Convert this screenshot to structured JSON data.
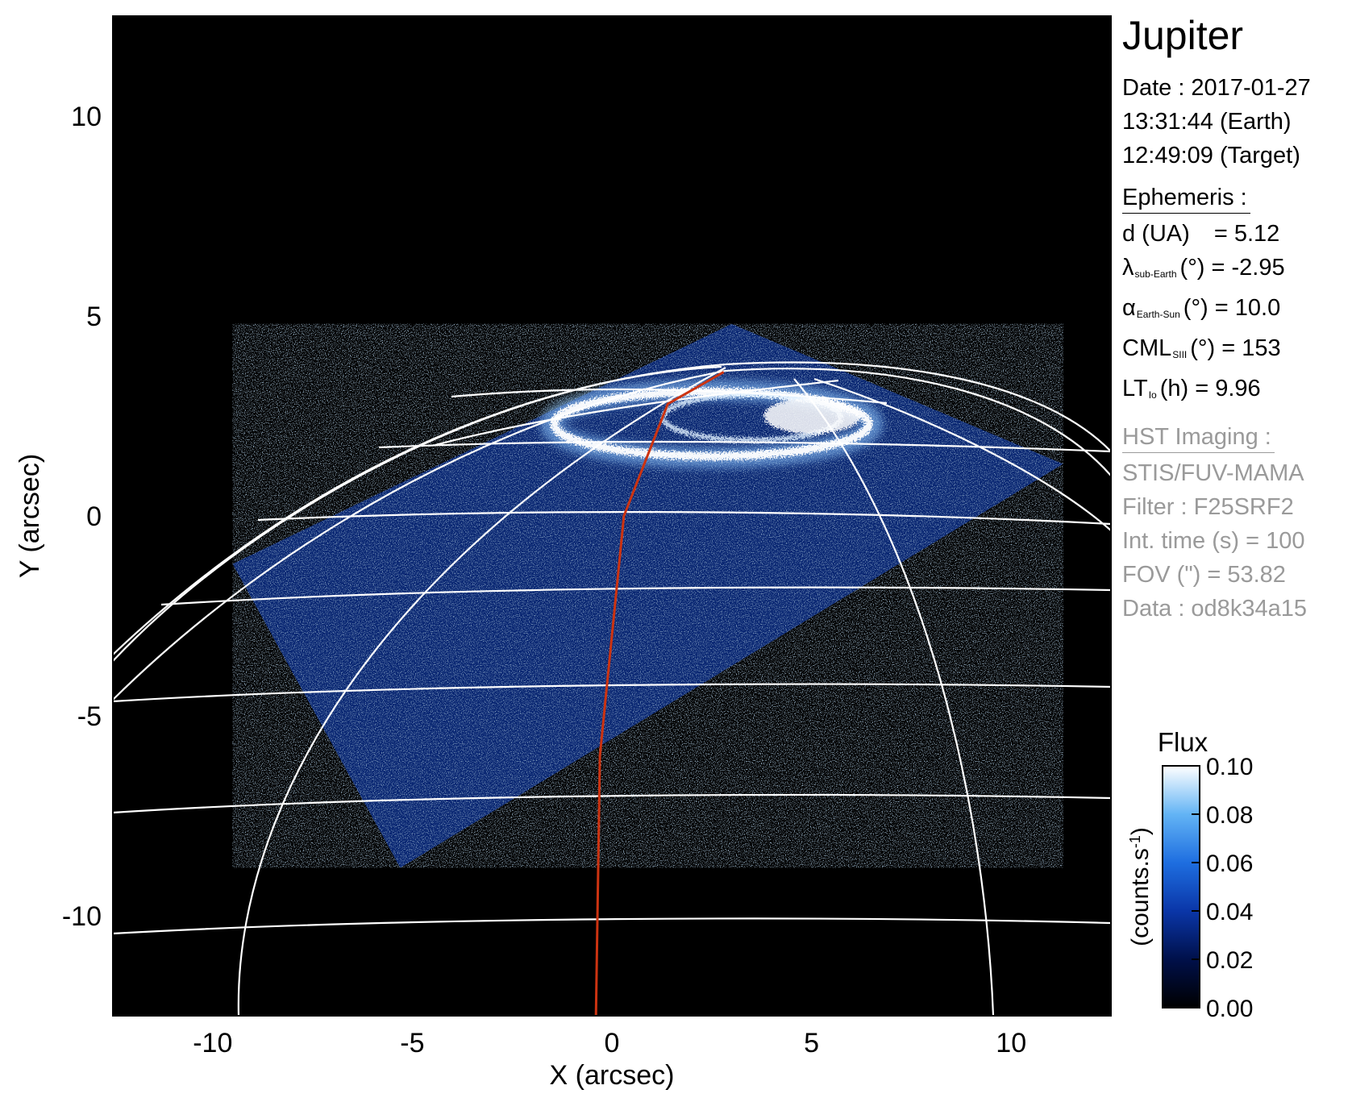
{
  "chart_data": {
    "type": "heatmap",
    "title": "Jupiter",
    "xlabel": "X (arcsec)",
    "ylabel": "Y (arcsec)",
    "xlim": [
      -12.5,
      12.5
    ],
    "ylim": [
      -12.5,
      12.5
    ],
    "xticks": [
      -10,
      -5,
      0,
      5,
      10
    ],
    "yticks": [
      10,
      5,
      0,
      -5,
      -10
    ],
    "xtick_labels": [
      "-10",
      "-5",
      "0",
      "5",
      "10"
    ],
    "ytick_labels": [
      "10",
      "5",
      "0",
      "-5",
      "-10"
    ],
    "image_corners": [
      [
        -9.5,
        -1.2
      ],
      [
        -5.3,
        -8.8
      ],
      [
        11.3,
        1.3
      ],
      [
        3.0,
        4.8
      ]
    ],
    "auroral_oval_center": [
      3.1,
      2.3
    ],
    "meridian_line": [
      [
        -0.4,
        -12.5
      ],
      [
        -0.3,
        -6.0
      ],
      [
        0.3,
        0.0
      ],
      [
        1.4,
        2.8
      ],
      [
        2.8,
        3.6
      ]
    ],
    "colors": {
      "background": "#000000",
      "grid": "#ffffff",
      "meridian": "#cc3311",
      "emission": "#1a55d6"
    },
    "colorbar": {
      "title": "Flux",
      "unit_label": "(counts.s",
      "unit_sup": "-1",
      "unit_close": ")",
      "range": [
        0.0,
        0.1
      ],
      "tick_labels": [
        "0.10",
        "0.08",
        "0.06",
        "0.04",
        "0.02",
        "0.00"
      ],
      "colors": [
        "#000000",
        "#00104a",
        "#0a36a8",
        "#1e6ee0",
        "#63b4f5",
        "#ffffff"
      ]
    }
  },
  "info": {
    "title": "Jupiter",
    "date_line": "Date : 2017-01-27",
    "time_earth": "13:31:44 (Earth)",
    "time_target": "12:49:09 (Target)",
    "ephemeris_heading": "Ephemeris :",
    "d_label": "d (UA)",
    "d_value": "= 5.12",
    "lambda_symbol": "λ",
    "lambda_sub": "sub-Earth",
    "lambda_value": "(°) = -2.95",
    "alpha_symbol": "α",
    "alpha_sub": "Earth-Sun",
    "alpha_value": "(°) = 10.0",
    "cml_symbol": "CML",
    "cml_sub": "SIII",
    "cml_value": "(°) = 153",
    "lt_symbol": "LT",
    "lt_sub": "Io",
    "lt_value": "(h) = 9.96",
    "hst_heading": "HST Imaging :",
    "instrument": "STIS/FUV-MAMA",
    "filter": "Filter : F25SRF2",
    "int_time": "Int. time (s) = 100",
    "fov": "FOV (\") = 53.82",
    "data_id": "Data : od8k34a15"
  }
}
